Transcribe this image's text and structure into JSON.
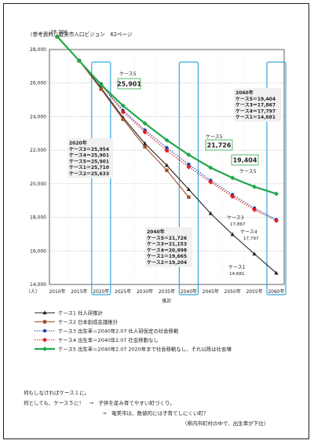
{
  "header": {
    "source": "（参考資料）奄美市人口ビジョン　62ページ"
  },
  "chart_data": {
    "type": "line",
    "x": [
      "2010年",
      "2015年",
      "2020年",
      "2025年",
      "2030年",
      "2035年",
      "2040年",
      "2045年",
      "2050年",
      "2055年",
      "2060年"
    ],
    "y_unit": "（人）",
    "xlabel": "推計",
    "ylim": [
      14000,
      28000
    ],
    "yticks": [
      "14,000",
      "16,000",
      "18,000",
      "20,000",
      "22,000",
      "24,000",
      "26,000",
      "28,000"
    ],
    "ytick_values": [
      14000,
      16000,
      18000,
      20000,
      22000,
      24000,
      26000,
      28000
    ],
    "grid": true,
    "legend_placement": "bottom",
    "series": [
      {
        "name": "ケース1",
        "legend": "ケース1 社人研推計",
        "color": "#222222",
        "marker": "triangle",
        "dash": "solid",
        "values": [
          28766,
          27330,
          25710,
          23950,
          22400,
          21100,
          19665,
          18230,
          16980,
          15820,
          14681
        ]
      },
      {
        "name": "ケース2",
        "legend": "ケース2 日本創成会議推計",
        "color": "#a0522d",
        "marker": "square",
        "dash": "solid",
        "values": [
          28766,
          27330,
          25633,
          23850,
          22200,
          20800,
          19204,
          null,
          null,
          null,
          null
        ]
      },
      {
        "name": "ケース3",
        "legend": "ケース3 出生率＝2040年2.07 社人研仮定の社会移動",
        "color": "#1f3fa6",
        "marker": "circle",
        "dash": "dotted",
        "values": [
          28766,
          27330,
          25954,
          24370,
          23200,
          22150,
          21153,
          20200,
          19350,
          18550,
          17867
        ]
      },
      {
        "name": "ケース4",
        "legend": "ケース4 出生率＝2040年2.07 社会移動なし",
        "color": "#e02020",
        "marker": "diamond",
        "dash": "dotted",
        "values": [
          28766,
          27330,
          25901,
          24280,
          23080,
          21980,
          20998,
          20100,
          19230,
          18450,
          17797
        ]
      },
      {
        "name": "ケース5",
        "legend": "ケース5 出生率＝2040年2.07 2020年まで社会移動なし、それ以降は社会増",
        "color": "#22a84a",
        "marker": "diamond",
        "dash": "solid",
        "values": [
          28766,
          27330,
          25901,
          24650,
          23600,
          22600,
          21726,
          20960,
          20350,
          19820,
          19404
        ]
      }
    ],
    "highlight_years": [
      "2020年",
      "2040年",
      "2060年"
    ],
    "annotations": {
      "start_value": "28,766",
      "case5_label_2020": "ケース5",
      "case5_value_2020": "25,901",
      "case5_label_2040": "ケース5",
      "case5_value_2040": "21,726",
      "case5_value_2060": "19,404",
      "case5_label_2060": "ケース5",
      "box_2020": [
        "2020年",
        "ケース3＝25,954",
        "ケース4＝25,901",
        "ケース5＝25,901",
        "ケース1＝25,710",
        "ケース2＝25,633"
      ],
      "box_2040": [
        "2040年",
        "ケース5＝21,726",
        "ケース3＝21,153",
        "ケース4＝20,998",
        "ケース1＝19,665",
        "ケース2＝19,204"
      ],
      "box_2060": [
        "2060年",
        "ケース5＝19,404",
        "ケース3＝17,867",
        "ケース4＝17,797",
        "ケース1＝14,681"
      ],
      "end_case3": [
        "ケース3",
        "17,867"
      ],
      "end_case4": [
        "ケース4",
        "17,797"
      ],
      "end_case1": [
        "ケース1",
        "14,681"
      ]
    }
  },
  "notes": {
    "line1": "何もしなければケース１に。",
    "line2": "何としても、ケース５に！　→　子供を産み育てやすい町づくり。",
    "line3": "→　奄美市は、数値的には子育てしにくい町？",
    "line4": "（県内市町村の中で、出生率が下位）"
  }
}
